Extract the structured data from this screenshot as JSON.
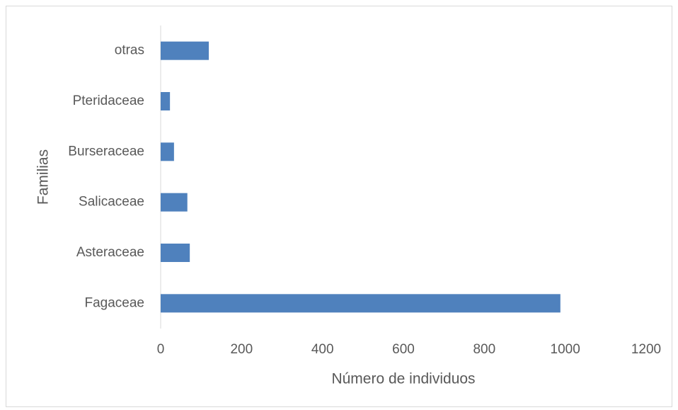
{
  "chart_data": {
    "type": "barh",
    "categories": [
      "Fagaceae",
      "Asteraceae",
      "Salicaceae",
      "Burseraceae",
      "Pteridaceae",
      "otras"
    ],
    "values": [
      988,
      72,
      66,
      33,
      23,
      119
    ],
    "color": "#4f81bd",
    "x_label": "Número de individuos",
    "y_label": "Familias",
    "xlim": [
      0,
      1200
    ],
    "xticks": [
      0,
      200,
      400,
      600,
      800,
      1000,
      1200
    ],
    "grid": false
  }
}
